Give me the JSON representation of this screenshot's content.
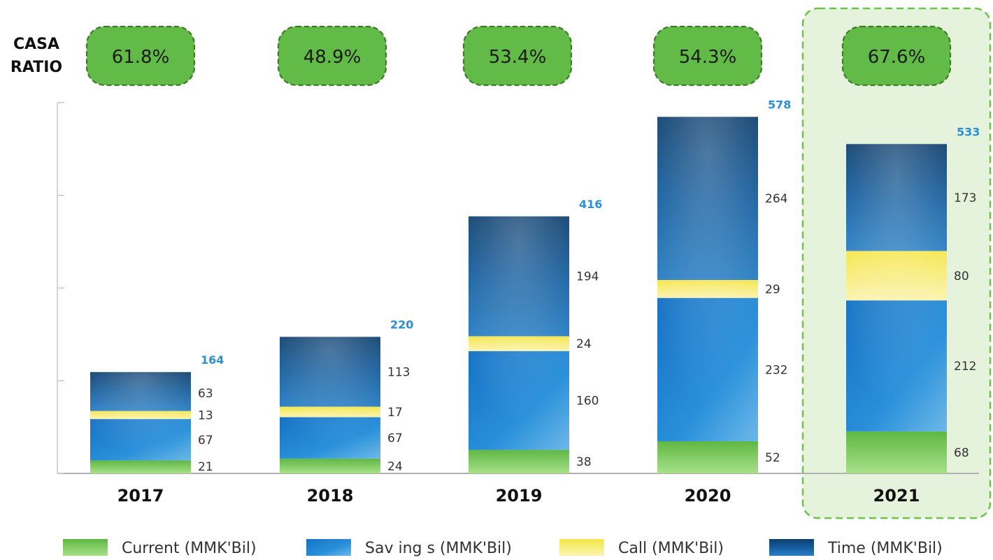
{
  "casa_label_line1": "CASA",
  "casa_label_line2": "RATIO",
  "colors": {
    "current": "#6cc24a",
    "savings": "#1c7fcf",
    "call": "#f7ec5a",
    "time": "#0f4f86",
    "total_label": "#2a8fd8",
    "ratio_badge": "#62bb46",
    "highlight_bg": "#e6f3dc"
  },
  "highlighted_year": "2021",
  "chart_data": {
    "type": "bar",
    "stacked": true,
    "categories": [
      "2017",
      "2018",
      "2019",
      "2020",
      "2021"
    ],
    "series": [
      {
        "name": "Current (MMK'Bil)",
        "key": "current",
        "values": [
          21,
          24,
          38,
          52,
          68
        ]
      },
      {
        "name": "Sav ing s (MMK'Bil)",
        "key": "savings",
        "values": [
          67,
          67,
          160,
          232,
          212
        ]
      },
      {
        "name": "Call (MMK'Bil)",
        "key": "call",
        "values": [
          13,
          17,
          24,
          29,
          80
        ]
      },
      {
        "name": "Time (MMK'Bil)",
        "key": "time",
        "values": [
          63,
          113,
          194,
          264,
          173
        ]
      }
    ],
    "totals": [
      164,
      220,
      416,
      578,
      533
    ],
    "casa_ratio": [
      "61.8%",
      "48.9%",
      "53.4%",
      "54.3%",
      "67.6%"
    ],
    "ylim": [
      0,
      600
    ],
    "legend_position": "bottom"
  }
}
